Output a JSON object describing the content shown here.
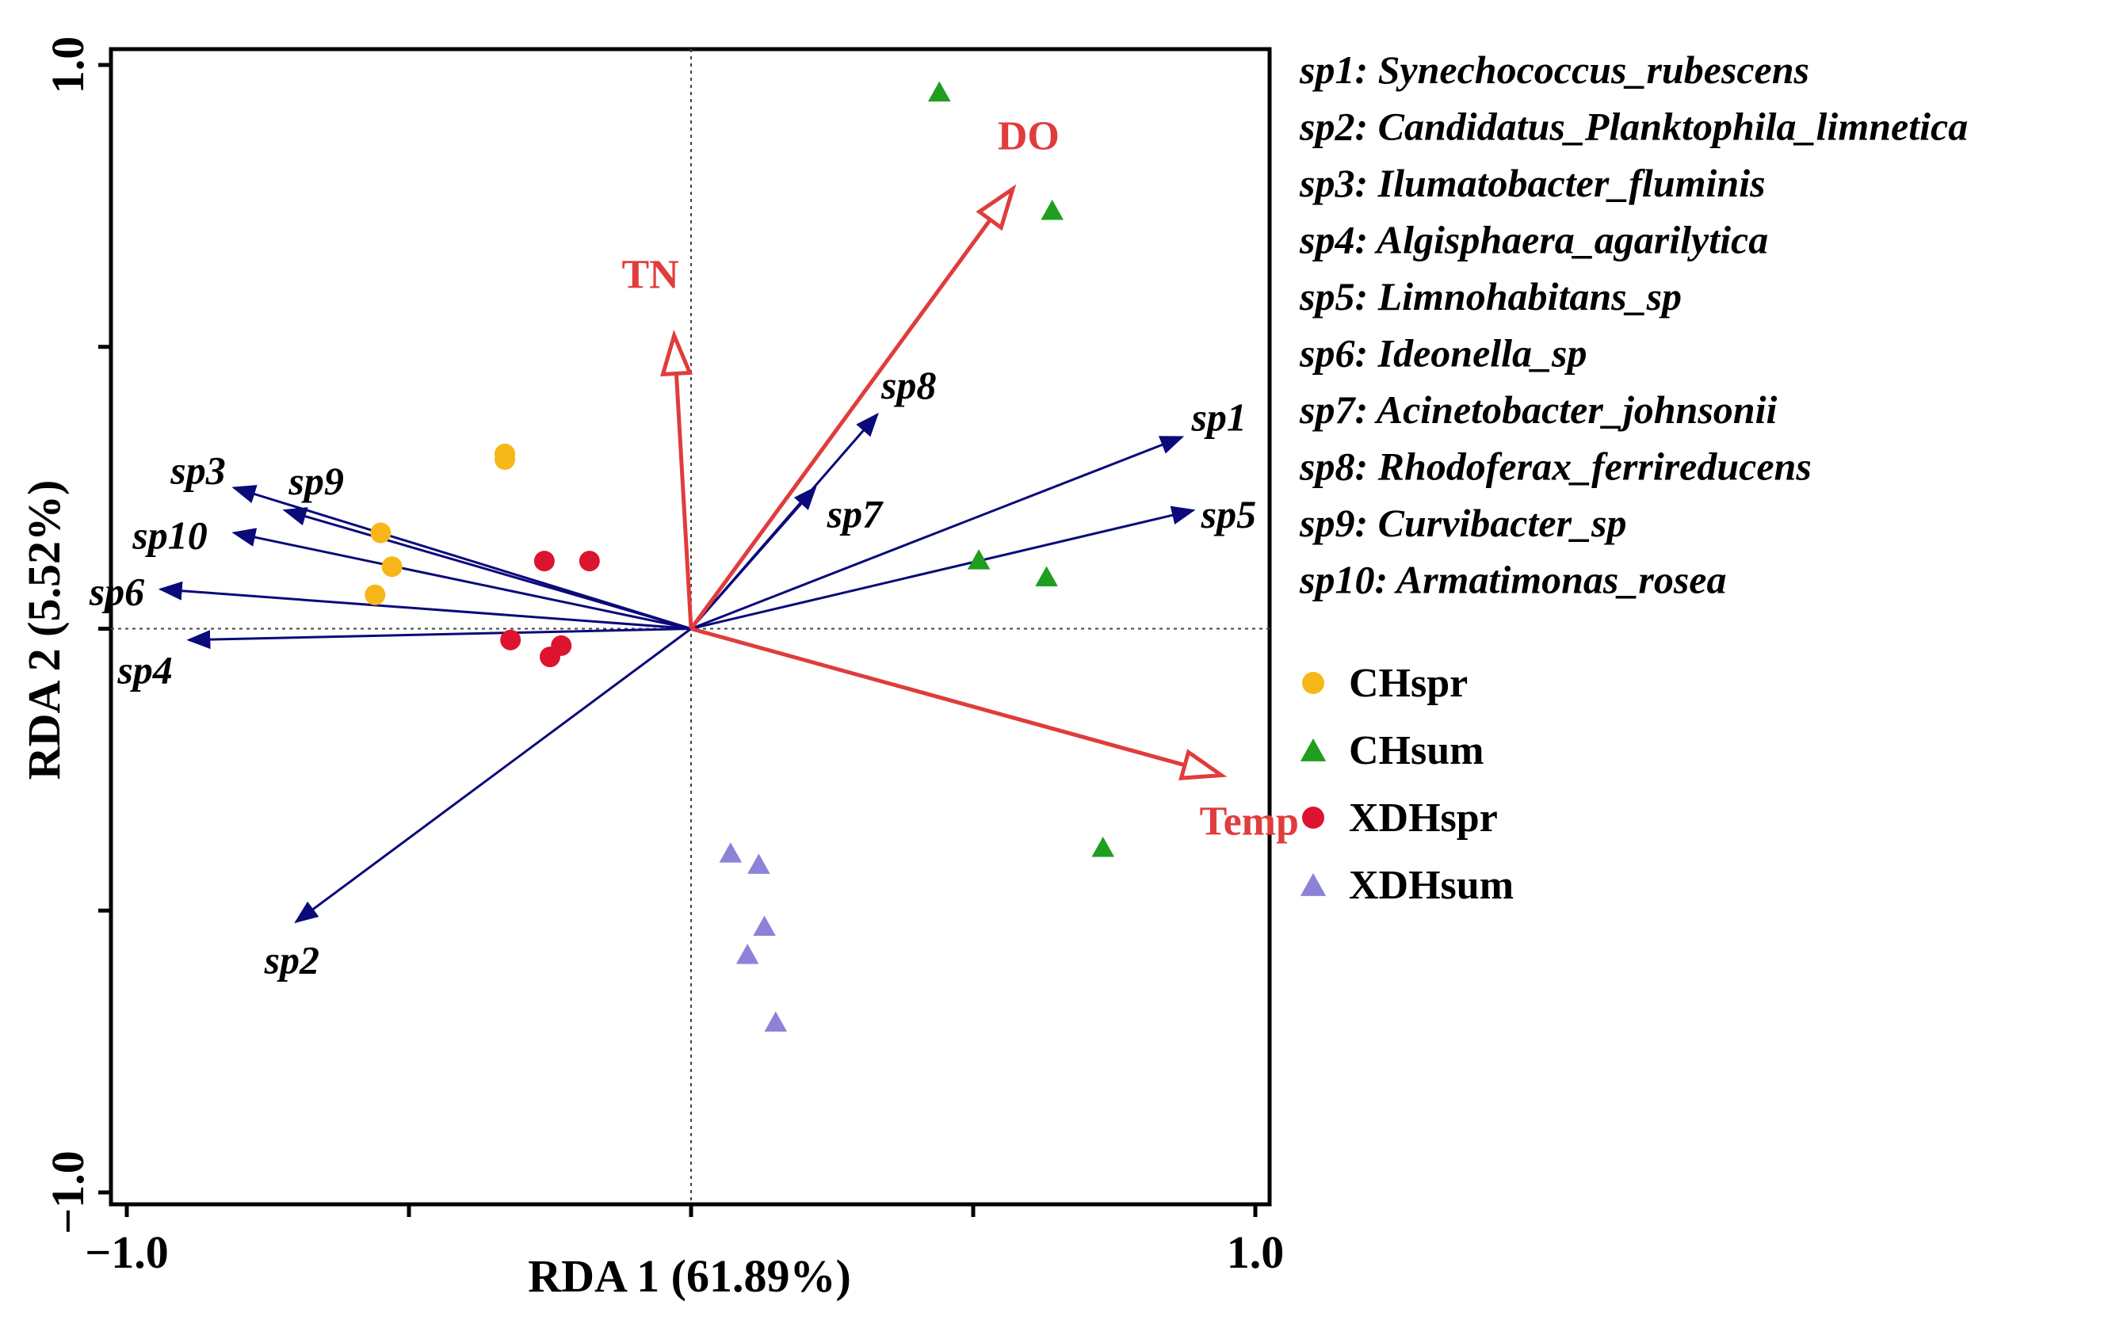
{
  "chart_data": {
    "type": "scatter",
    "subtype": "RDA biplot",
    "xlabel": "RDA 1 (61.89%)",
    "ylabel": "RDA 2 (5.52%)",
    "xlim": [
      -1.0,
      1.0
    ],
    "ylim": [
      -1.0,
      1.0
    ],
    "x_tick_labels": [
      {
        "value": -1.0,
        "label": "−1.0"
      },
      {
        "value": 1.0,
        "label": "1.0"
      }
    ],
    "y_tick_labels": [
      {
        "value": 1.0,
        "label": "1.0"
      },
      {
        "value": -1.0,
        "label": "−1.0"
      }
    ],
    "x_minor_ticks": [
      -1.0,
      -0.5,
      0.0,
      0.5,
      1.0
    ],
    "y_minor_ticks": [
      1.0,
      0.5,
      0.0,
      -0.5,
      -1.0
    ],
    "zero_lines": true,
    "species_color": "#0a0a7a",
    "env_color": "#e03c3c",
    "environmental_vectors": [
      {
        "name": "DO",
        "x": 0.57,
        "y": 0.78
      },
      {
        "name": "TN",
        "x": -0.03,
        "y": 0.52
      },
      {
        "name": "Temp",
        "x": 0.94,
        "y": -0.26
      }
    ],
    "species_vectors": [
      {
        "name": "sp1",
        "x": 0.87,
        "y": 0.34
      },
      {
        "name": "sp2",
        "x": -0.7,
        "y": -0.52
      },
      {
        "name": "sp3",
        "x": -0.81,
        "y": 0.25
      },
      {
        "name": "sp4",
        "x": -0.89,
        "y": -0.02
      },
      {
        "name": "sp5",
        "x": 0.89,
        "y": 0.21
      },
      {
        "name": "sp6",
        "x": -0.94,
        "y": 0.07
      },
      {
        "name": "sp7",
        "x": 0.22,
        "y": 0.25
      },
      {
        "name": "sp8",
        "x": 0.33,
        "y": 0.38
      },
      {
        "name": "sp9",
        "x": -0.72,
        "y": 0.21
      },
      {
        "name": "sp10",
        "x": -0.81,
        "y": 0.17
      }
    ],
    "species_legend": [
      "sp1: Synechococcus_rubescens",
      "sp2: Candidatus_Planktophila_limnetica",
      "sp3: Ilumatobacter_fluminis",
      "sp4: Algisphaera_agarilytica",
      "sp5: Limnohabitans_sp",
      "sp6: Ideonella_sp",
      "sp7: Acinetobacter_johnsonii",
      "sp8: Rhodoferax_ferrireducens",
      "sp9: Curvibacter_sp",
      "sp10: Armatimonas_rosea"
    ],
    "groups": [
      {
        "name": "CHspr",
        "marker": "circle",
        "color": "#f7b718",
        "points": [
          [
            -0.33,
            0.31
          ],
          [
            -0.33,
            0.3
          ],
          [
            -0.55,
            0.17
          ],
          [
            -0.53,
            0.11
          ],
          [
            -0.56,
            0.06
          ]
        ]
      },
      {
        "name": "CHsum",
        "marker": "triangle",
        "color": "#1f9e1f",
        "points": [
          [
            0.44,
            0.95
          ],
          [
            0.64,
            0.74
          ],
          [
            0.51,
            0.12
          ],
          [
            0.63,
            0.09
          ],
          [
            0.73,
            -0.39
          ]
        ]
      },
      {
        "name": "XDHspr",
        "marker": "circle",
        "color": "#dc1430",
        "points": [
          [
            -0.26,
            0.12
          ],
          [
            -0.18,
            0.12
          ],
          [
            -0.32,
            -0.02
          ],
          [
            -0.23,
            -0.03
          ],
          [
            -0.25,
            -0.05
          ]
        ]
      },
      {
        "name": "XDHsum",
        "marker": "triangle",
        "color": "#8c82d8",
        "points": [
          [
            0.07,
            -0.4
          ],
          [
            0.12,
            -0.42
          ],
          [
            0.13,
            -0.53
          ],
          [
            0.1,
            -0.58
          ],
          [
            0.15,
            -0.7
          ]
        ]
      }
    ]
  }
}
